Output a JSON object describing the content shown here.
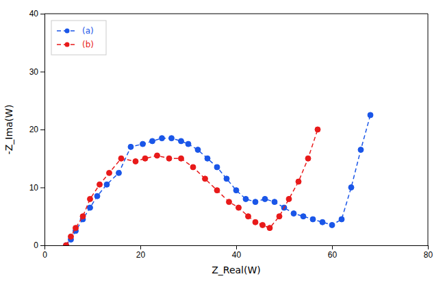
{
  "chart_data": {
    "type": "line",
    "x_label": "Z_Real(W)",
    "y_label": "-Z_Ima(W)",
    "series": [
      {
        "name": "(a)",
        "color": "#1a56e8",
        "x": [
          4.5,
          5.5,
          6.5,
          8.0,
          9.5,
          11.0,
          13.0,
          15.5,
          18.0,
          20.5,
          22.5,
          24.5,
          26.5,
          28.5,
          30.0,
          32.0,
          34.0,
          36.0,
          38.0,
          40.0,
          42.0,
          44.0,
          46.0,
          48.0,
          50.0,
          52.0,
          54.0,
          56.0,
          58.0,
          60.0,
          62.0,
          64.0,
          66.0,
          68.0
        ],
        "values": [
          0.0,
          1.0,
          2.5,
          4.5,
          6.5,
          8.5,
          10.5,
          12.5,
          17.0,
          17.5,
          18.0,
          18.5,
          18.5,
          18.0,
          17.5,
          16.5,
          15.0,
          13.5,
          11.5,
          9.5,
          8.0,
          7.5,
          8.0,
          7.5,
          6.5,
          5.5,
          5.0,
          4.5,
          4.0,
          3.5,
          4.5,
          10.0,
          16.5,
          22.5
        ]
      },
      {
        "name": "(b)",
        "color": "#e81a1a",
        "x": [
          4.5,
          5.5,
          6.5,
          8.0,
          9.5,
          11.5,
          13.5,
          16.0,
          19.0,
          21.0,
          23.5,
          26.0,
          28.5,
          31.0,
          33.5,
          36.0,
          38.5,
          40.5,
          42.5,
          44.0,
          45.5,
          47.0,
          49.0,
          51.0,
          53.0,
          55.0,
          57.0
        ],
        "values": [
          0.0,
          1.5,
          3.0,
          5.0,
          8.0,
          10.5,
          12.5,
          15.0,
          14.5,
          15.0,
          15.5,
          15.0,
          15.0,
          13.5,
          11.5,
          9.5,
          7.5,
          6.5,
          5.0,
          4.0,
          3.5,
          3.0,
          5.0,
          8.0,
          11.0,
          15.0,
          20.0
        ]
      }
    ],
    "xlim": [
      0,
      80
    ],
    "ylim": [
      0,
      40
    ],
    "xticks": [
      0,
      20,
      40,
      60,
      80
    ],
    "yticks": [
      0,
      10,
      20,
      30,
      40
    ],
    "marker": "circle",
    "line_style": "dashed",
    "legend": "upper left",
    "grid": false
  }
}
